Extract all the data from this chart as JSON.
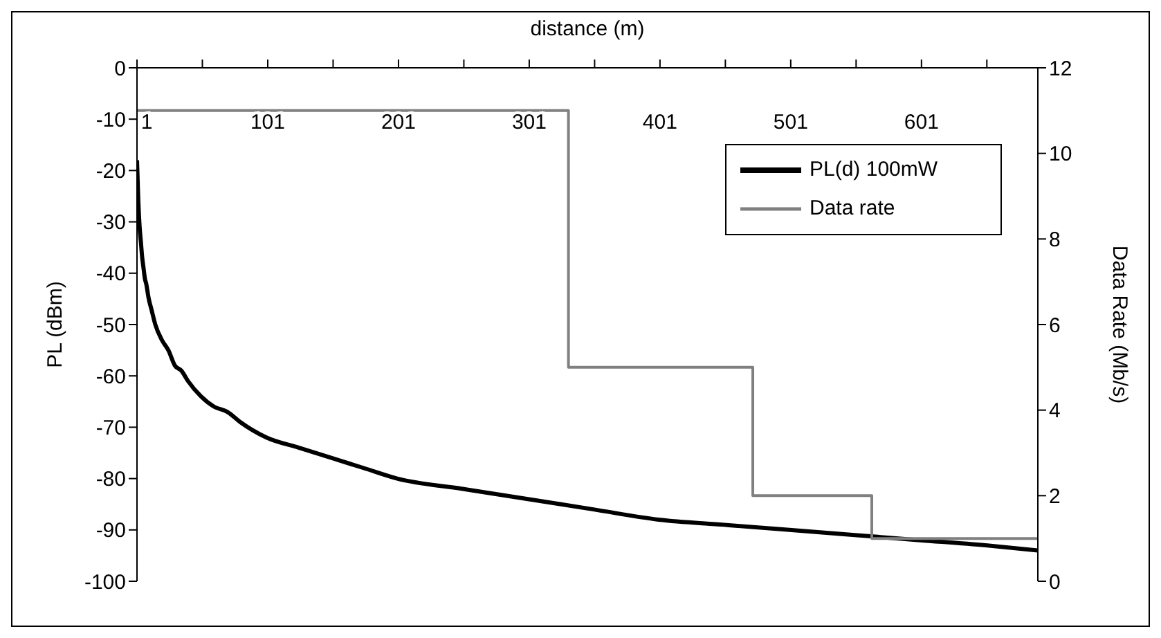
{
  "chart_data": {
    "type": "line",
    "xlabel": "distance (m)",
    "ylabel": "PL (dBm)",
    "y2label": "Data Rate (Mb/s)",
    "xlim": [
      1,
      690
    ],
    "xticks": [
      1,
      {
        "value": 51,
        "label": null
      },
      101,
      {
        "value": 151,
        "label": null
      },
      201,
      {
        "value": 251,
        "label": null
      },
      301,
      {
        "value": 351,
        "label": null
      },
      401,
      {
        "value": 451,
        "label": null
      },
      501,
      {
        "value": 551,
        "label": null
      },
      601,
      {
        "value": 651,
        "label": null
      }
    ],
    "ylim": [
      -100,
      0
    ],
    "yticks": [
      -100,
      -90,
      -80,
      -70,
      -60,
      -50,
      -40,
      -30,
      -20,
      -10,
      0
    ],
    "y2lim": [
      0,
      12
    ],
    "y2ticks": [
      0,
      2,
      4,
      6,
      8,
      10,
      12
    ],
    "legend": "top right",
    "marker": "none",
    "series": [
      {
        "name": "PL(d) 100mW",
        "color": "#000000",
        "x": [
          1,
          2,
          3,
          4,
          5,
          6,
          7,
          8,
          10,
          12,
          15,
          20,
          25,
          30,
          35,
          40,
          50,
          60,
          70,
          80,
          100,
          125,
          150,
          175,
          200,
          250,
          300,
          350,
          400,
          450,
          500,
          550,
          600,
          650,
          690
        ],
        "values": [
          -18,
          -26,
          -31,
          -34,
          -37,
          -39,
          -41,
          -42,
          -45,
          -47,
          -50,
          -53,
          -55,
          -58,
          -59,
          -61,
          -64,
          -66,
          -67,
          -69,
          -72,
          -74,
          -76,
          -78,
          -80,
          -82,
          -84,
          -86,
          -88,
          -89,
          -90,
          -91,
          -92,
          -93,
          -94
        ]
      },
      {
        "name": "Data rate",
        "color": "#808080",
        "type": "step",
        "axis": "y2",
        "x": [
          1,
          331,
          472,
          563,
          690
        ],
        "values": [
          11,
          5,
          2,
          1,
          1
        ]
      }
    ]
  }
}
